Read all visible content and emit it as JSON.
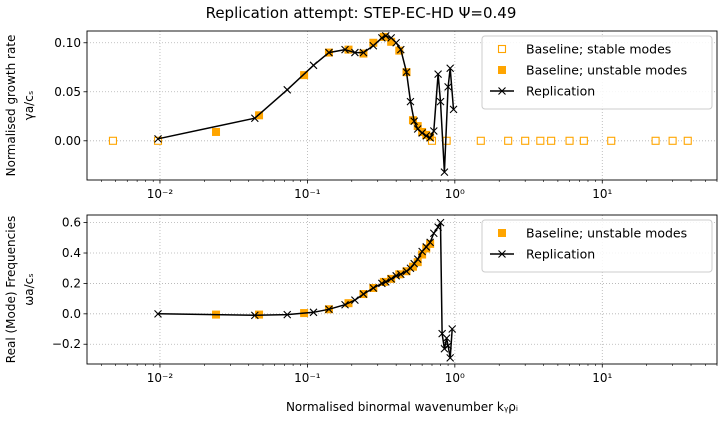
{
  "title": "Replication attempt: STEP-EC-HD Ψ=0.49",
  "colors": {
    "baseline": "#ffa500",
    "replication": "#000000",
    "grid": "#b0b0b0"
  },
  "chart_data": [
    {
      "type": "scatter",
      "ylabel": "Normalised growth rate",
      "ylabel2": "γa/cₛ",
      "xscale": "log",
      "xlim": [
        0.0032,
        60
      ],
      "ylim": [
        -0.04,
        0.112
      ],
      "yticks": [
        0.0,
        0.05,
        0.1
      ],
      "ytick_labels": [
        "0.00",
        "0.05",
        "0.10"
      ],
      "xticks": [
        0.01,
        0.1,
        1,
        10
      ],
      "xtick_labels": [
        "10⁻²",
        "10⁻¹",
        "10⁰",
        "10¹"
      ],
      "grid": true,
      "legend_position": "upper right",
      "series": [
        {
          "name": "Baseline; stable modes",
          "marker": "hollow-square",
          "x": [
            0.0048,
            0.0097,
            0.7,
            0.88,
            1.5,
            2.3,
            3.0,
            3.8,
            4.5,
            6.0,
            7.5,
            11.5,
            23,
            30,
            38
          ],
          "y": [
            0,
            0,
            0,
            0,
            0,
            0,
            0,
            0,
            0,
            0,
            0,
            0,
            0,
            0,
            0
          ]
        },
        {
          "name": "Baseline; unstable modes",
          "marker": "filled-square",
          "x": [
            0.024,
            0.047,
            0.095,
            0.14,
            0.19,
            0.24,
            0.28,
            0.33,
            0.37,
            0.42,
            0.47,
            0.52,
            0.56,
            0.6,
            0.64,
            0.68
          ],
          "y": [
            0.009,
            0.026,
            0.067,
            0.09,
            0.093,
            0.089,
            0.1,
            0.106,
            0.101,
            0.092,
            0.07,
            0.021,
            0.015,
            0.009,
            0.006,
            0.004
          ]
        },
        {
          "name": "Replication",
          "marker": "x-line",
          "x": [
            0.0097,
            0.044,
            0.073,
            0.11,
            0.14,
            0.18,
            0.21,
            0.24,
            0.28,
            0.32,
            0.34,
            0.37,
            0.4,
            0.43,
            0.47,
            0.5,
            0.53,
            0.56,
            0.6,
            0.64,
            0.68,
            0.72,
            0.77,
            0.8,
            0.85,
            0.9,
            0.93,
            0.98
          ],
          "y": [
            0.002,
            0.023,
            0.052,
            0.077,
            0.09,
            0.093,
            0.09,
            0.09,
            0.097,
            0.105,
            0.107,
            0.105,
            0.1,
            0.093,
            0.07,
            0.04,
            0.02,
            0.012,
            0.008,
            0.005,
            0.003,
            0.01,
            0.068,
            0.04,
            -0.032,
            0.055,
            0.074,
            0.032
          ]
        }
      ]
    },
    {
      "type": "scatter",
      "ylabel": "Real (Mode) Frequencies",
      "ylabel2": "ωa/cₛ",
      "xlabel": "Normalised binormal wavenumber kᵧρᵢ",
      "xscale": "log",
      "xlim": [
        0.0032,
        60
      ],
      "ylim": [
        -0.33,
        0.65
      ],
      "yticks": [
        -0.2,
        0.0,
        0.2,
        0.4,
        0.6
      ],
      "ytick_labels": [
        "−0.2",
        "0.0",
        "0.2",
        "0.4",
        "0.6"
      ],
      "xticks": [
        0.01,
        0.1,
        1,
        10
      ],
      "xtick_labels": [
        "10⁻²",
        "10⁻¹",
        "10⁰",
        "10¹"
      ],
      "grid": true,
      "legend_position": "upper right",
      "series": [
        {
          "name": "Baseline; unstable modes",
          "marker": "filled-square",
          "x": [
            0.024,
            0.047,
            0.095,
            0.14,
            0.19,
            0.24,
            0.28,
            0.33,
            0.37,
            0.42,
            0.47,
            0.52,
            0.56,
            0.6,
            0.64,
            0.68
          ],
          "y": [
            -0.005,
            -0.005,
            0.005,
            0.03,
            0.07,
            0.13,
            0.17,
            0.21,
            0.23,
            0.26,
            0.28,
            0.31,
            0.34,
            0.39,
            0.43,
            0.46
          ]
        },
        {
          "name": "Replication",
          "marker": "x-line",
          "x": [
            0.0097,
            0.044,
            0.073,
            0.11,
            0.14,
            0.18,
            0.21,
            0.24,
            0.28,
            0.32,
            0.34,
            0.37,
            0.4,
            0.43,
            0.47,
            0.5,
            0.53,
            0.56,
            0.6,
            0.64,
            0.68,
            0.72,
            0.77,
            0.8,
            0.82,
            0.85,
            0.88,
            0.9,
            0.93,
            0.96
          ],
          "y": [
            0.0,
            -0.01,
            -0.005,
            0.01,
            0.03,
            0.06,
            0.09,
            0.13,
            0.17,
            0.2,
            0.21,
            0.23,
            0.25,
            0.26,
            0.28,
            0.3,
            0.33,
            0.36,
            0.41,
            0.44,
            0.47,
            0.53,
            0.57,
            0.6,
            -0.13,
            -0.23,
            -0.16,
            -0.21,
            -0.29,
            -0.1
          ]
        }
      ]
    }
  ]
}
